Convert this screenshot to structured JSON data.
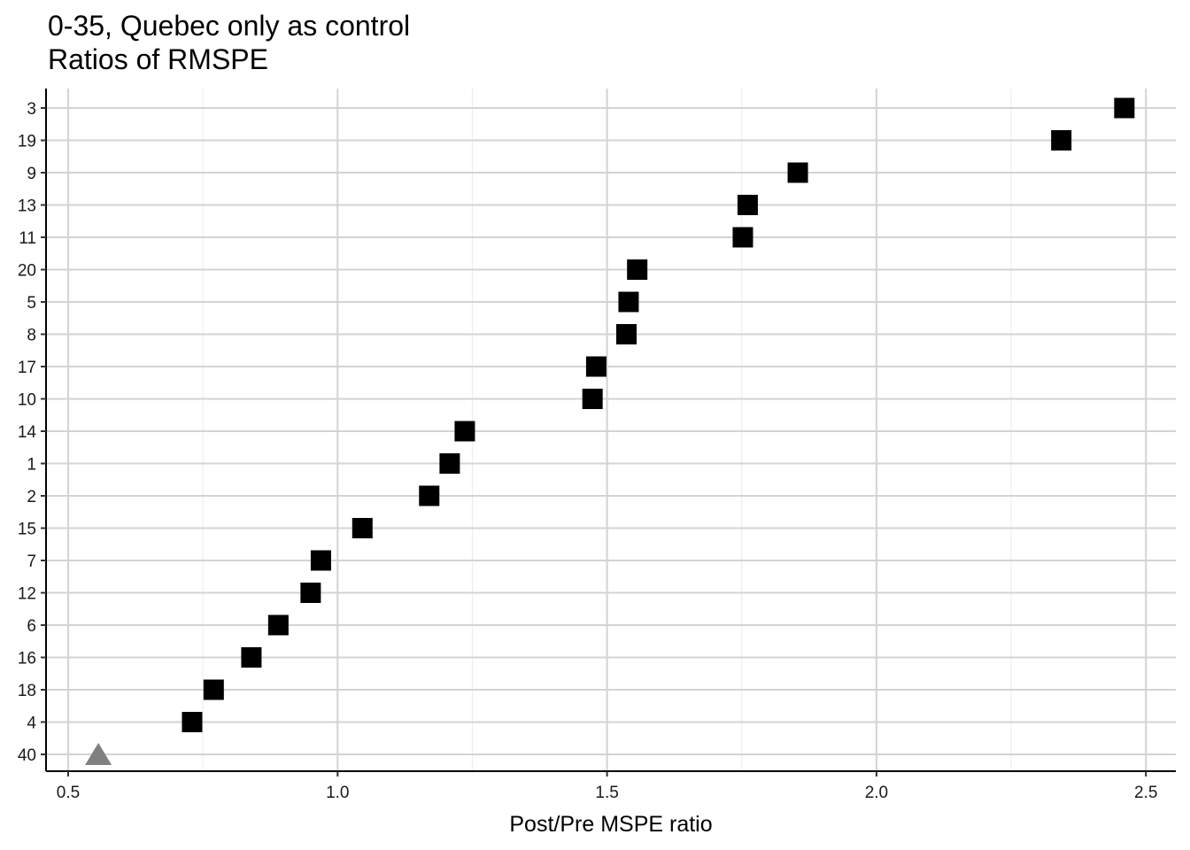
{
  "chart_data": {
    "type": "scatter",
    "title": "0-35, Quebec only as control",
    "subtitle": "Ratios of RMSPE",
    "xlabel": "Post/Pre MSPE ratio",
    "ylabel": "",
    "xlim": [
      0.45,
      2.55
    ],
    "xticks": [
      0.5,
      1.0,
      1.5,
      2.0,
      2.5
    ],
    "xtick_labels": [
      "0.5",
      "1.0",
      "1.5",
      "2.0",
      "2.5"
    ],
    "grid": true,
    "legend": "none",
    "categories": [
      "3",
      "19",
      "9",
      "13",
      "11",
      "20",
      "5",
      "8",
      "17",
      "10",
      "14",
      "1",
      "2",
      "15",
      "7",
      "12",
      "6",
      "16",
      "18",
      "4",
      "40"
    ],
    "points": [
      {
        "label": "3",
        "x": 2.46,
        "marker": "square",
        "color": "#000000"
      },
      {
        "label": "19",
        "x": 2.343,
        "marker": "square",
        "color": "#000000"
      },
      {
        "label": "9",
        "x": 1.854,
        "marker": "square",
        "color": "#000000"
      },
      {
        "label": "13",
        "x": 1.761,
        "marker": "square",
        "color": "#000000"
      },
      {
        "label": "11",
        "x": 1.752,
        "marker": "square",
        "color": "#000000"
      },
      {
        "label": "20",
        "x": 1.556,
        "marker": "square",
        "color": "#000000"
      },
      {
        "label": "5",
        "x": 1.54,
        "marker": "square",
        "color": "#000000"
      },
      {
        "label": "8",
        "x": 1.536,
        "marker": "square",
        "color": "#000000"
      },
      {
        "label": "17",
        "x": 1.48,
        "marker": "square",
        "color": "#000000"
      },
      {
        "label": "10",
        "x": 1.473,
        "marker": "square",
        "color": "#000000"
      },
      {
        "label": "14",
        "x": 1.236,
        "marker": "square",
        "color": "#000000"
      },
      {
        "label": "1",
        "x": 1.208,
        "marker": "square",
        "color": "#000000"
      },
      {
        "label": "2",
        "x": 1.17,
        "marker": "square",
        "color": "#000000"
      },
      {
        "label": "15",
        "x": 1.046,
        "marker": "square",
        "color": "#000000"
      },
      {
        "label": "7",
        "x": 0.969,
        "marker": "square",
        "color": "#000000"
      },
      {
        "label": "12",
        "x": 0.95,
        "marker": "square",
        "color": "#000000"
      },
      {
        "label": "6",
        "x": 0.89,
        "marker": "square",
        "color": "#000000"
      },
      {
        "label": "16",
        "x": 0.84,
        "marker": "square",
        "color": "#000000"
      },
      {
        "label": "18",
        "x": 0.77,
        "marker": "square",
        "color": "#000000"
      },
      {
        "label": "4",
        "x": 0.73,
        "marker": "square",
        "color": "#000000"
      },
      {
        "label": "40",
        "x": 0.556,
        "marker": "triangle",
        "color": "#808080"
      }
    ]
  }
}
